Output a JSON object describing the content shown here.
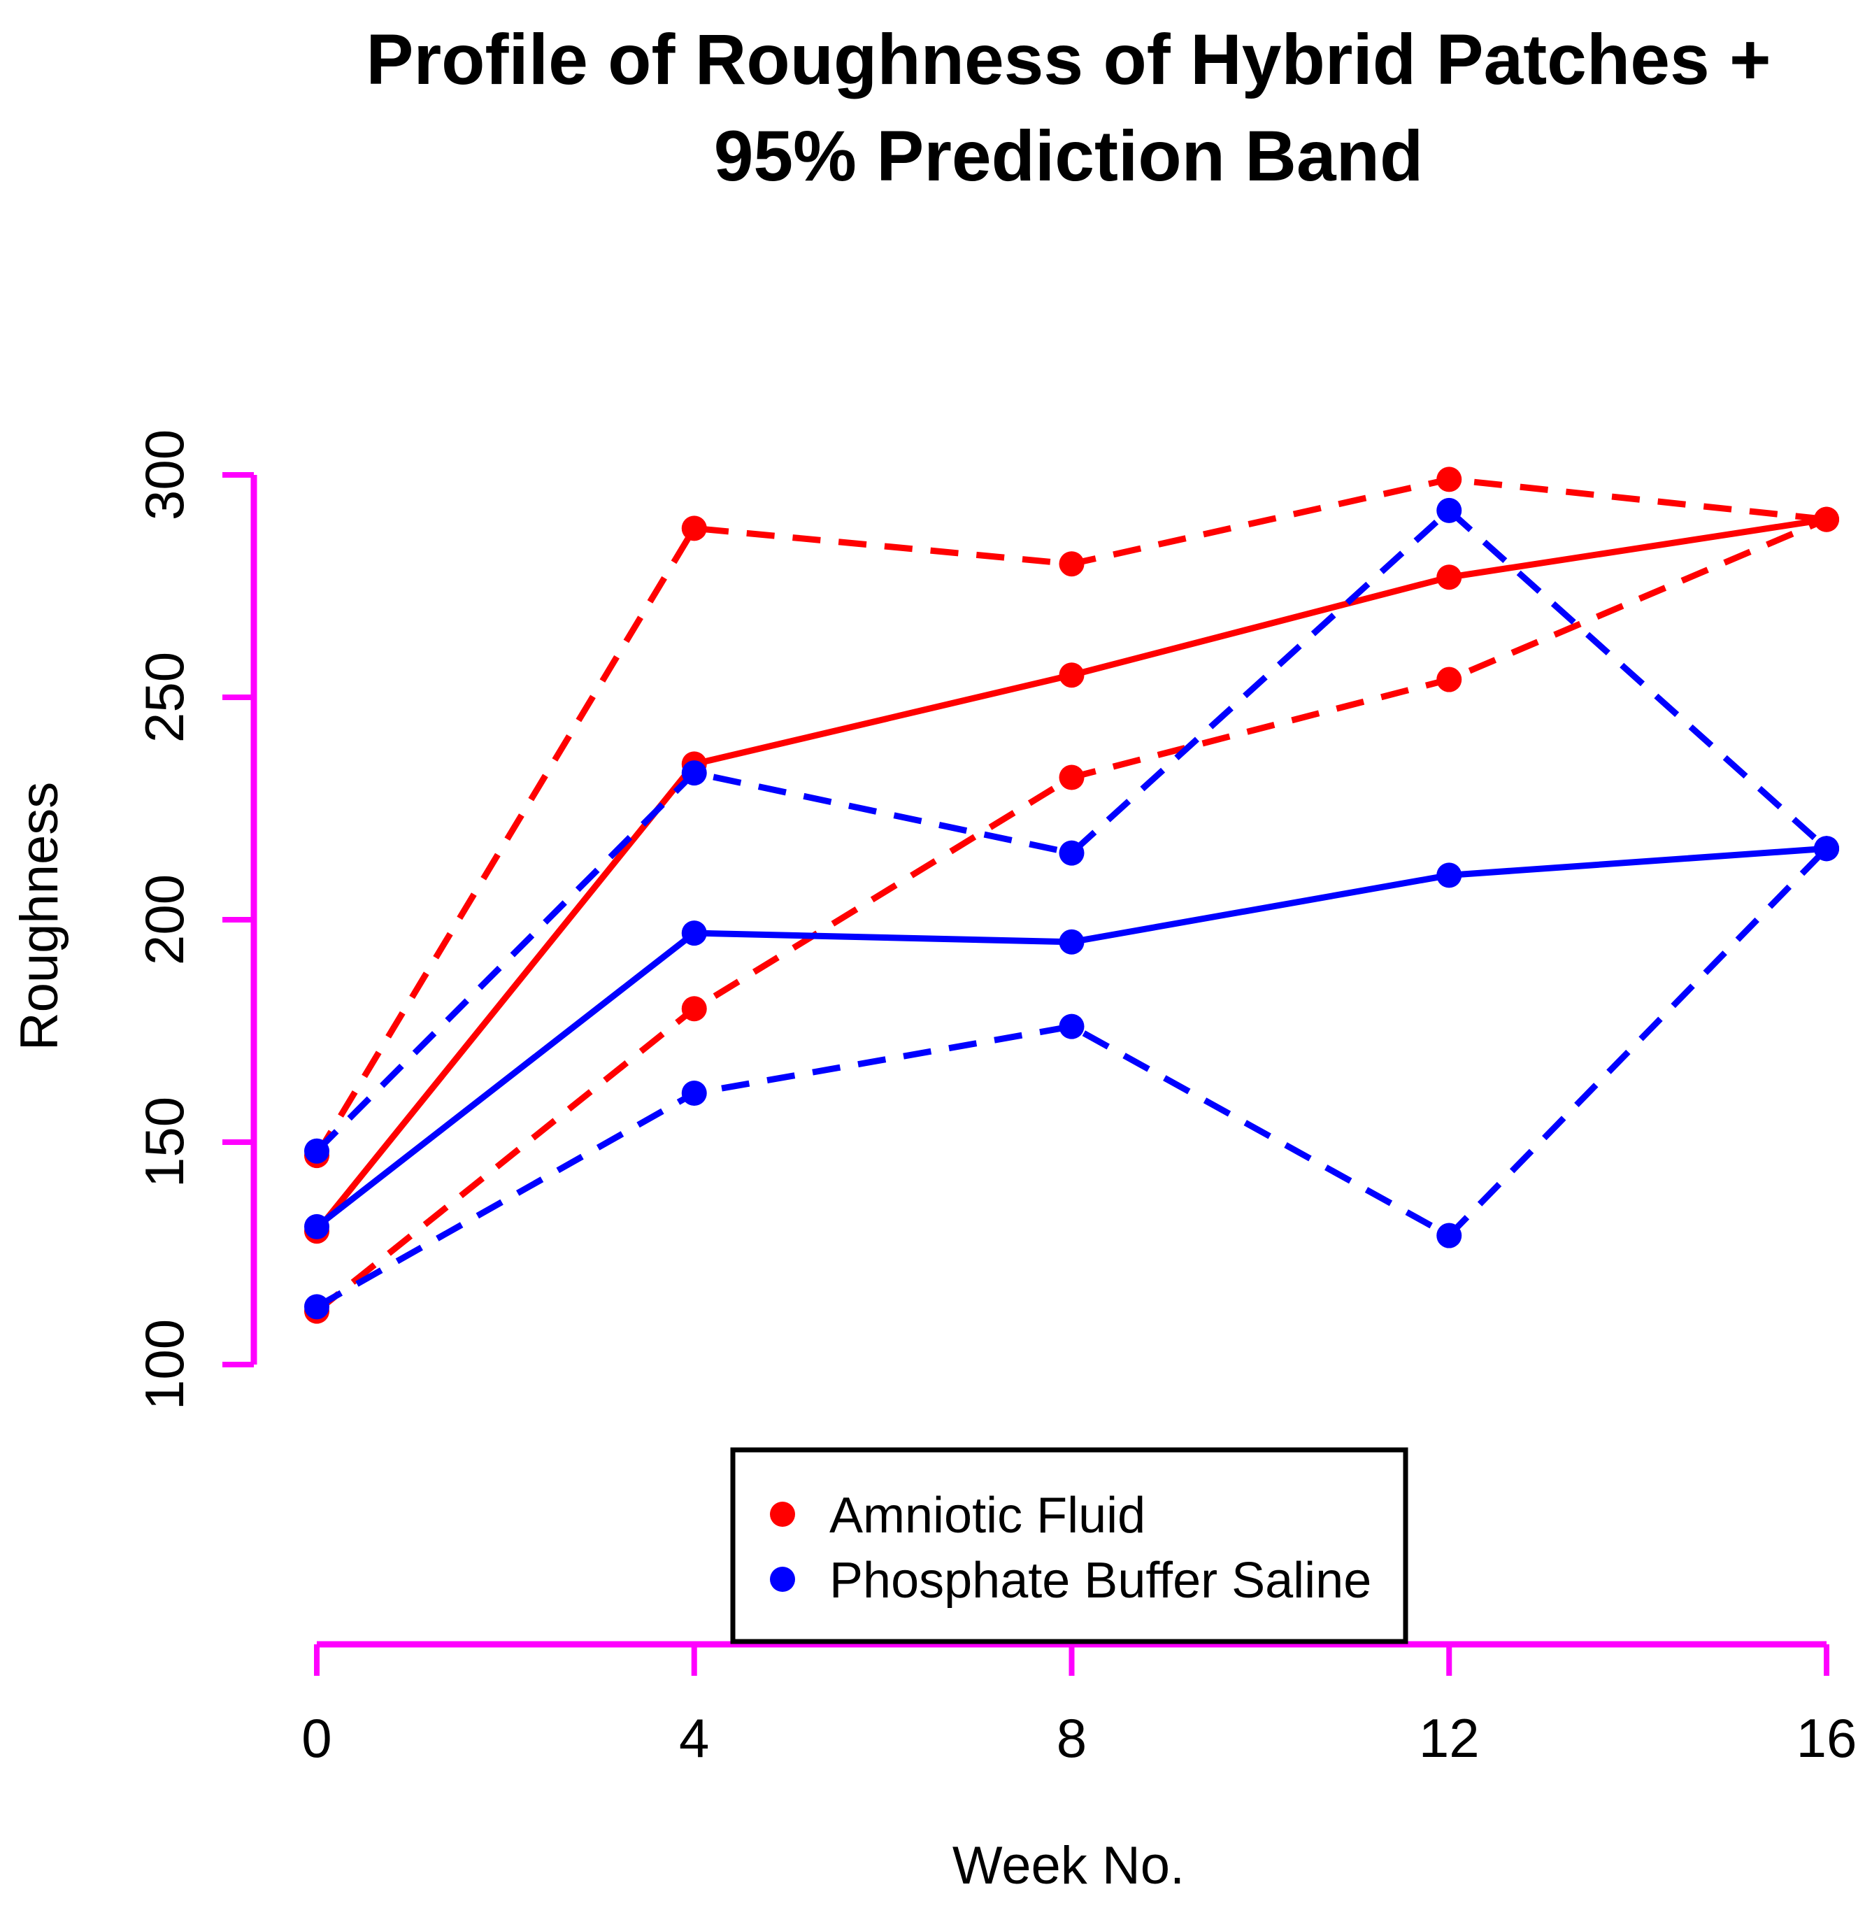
{
  "page": {
    "background": "#FFFFFF"
  },
  "chart_data": {
    "type": "line",
    "title_line1": "Profile of Roughness of Hybrid Patches +",
    "title_line2": "95% Prediction Band",
    "xlabel": "Week No.",
    "ylabel": "Roughness",
    "x": [
      0,
      4,
      8,
      12,
      16
    ],
    "xticks": [
      "0",
      "4",
      "8",
      "12",
      "16"
    ],
    "yticks": [
      "100",
      "150",
      "200",
      "250",
      "300"
    ],
    "xlim": [
      0,
      16
    ],
    "ylim": [
      100,
      300
    ],
    "axis_color": "#FF00FF",
    "grid": false,
    "point_style": "filled-circle",
    "series": [
      {
        "name": "amniotic-fluid-mean",
        "group": "Amniotic Fluid",
        "color": "#FF0000",
        "line": "solid",
        "values": [
          130,
          235,
          255,
          277,
          290
        ]
      },
      {
        "name": "amniotic-fluid-upper-band",
        "group": "Amniotic Fluid",
        "color": "#FF0000",
        "line": "dashed",
        "values": [
          147,
          288,
          280,
          299,
          290
        ]
      },
      {
        "name": "amniotic-fluid-lower-band",
        "group": "Amniotic Fluid",
        "color": "#FF0000",
        "line": "dashed",
        "values": [
          112,
          180,
          232,
          254,
          290
        ]
      },
      {
        "name": "pbs-mean",
        "group": "Phosphate Buffer Saline",
        "color": "#0000FF",
        "line": "solid",
        "values": [
          131,
          197,
          195,
          210,
          216
        ]
      },
      {
        "name": "pbs-upper-band",
        "group": "Phosphate Buffer Saline",
        "color": "#0000FF",
        "line": "dashed",
        "values": [
          148,
          233,
          215,
          292,
          216
        ]
      },
      {
        "name": "pbs-lower-band",
        "group": "Phosphate Buffer Saline",
        "color": "#0000FF",
        "line": "dashed",
        "values": [
          113,
          161,
          176,
          129,
          216
        ]
      }
    ],
    "legend": {
      "position": "bottom-center",
      "items": [
        {
          "label": "Amniotic Fluid",
          "color": "#FF0000"
        },
        {
          "label": "Phosphate Buffer Saline",
          "color": "#0000FF"
        }
      ]
    }
  }
}
